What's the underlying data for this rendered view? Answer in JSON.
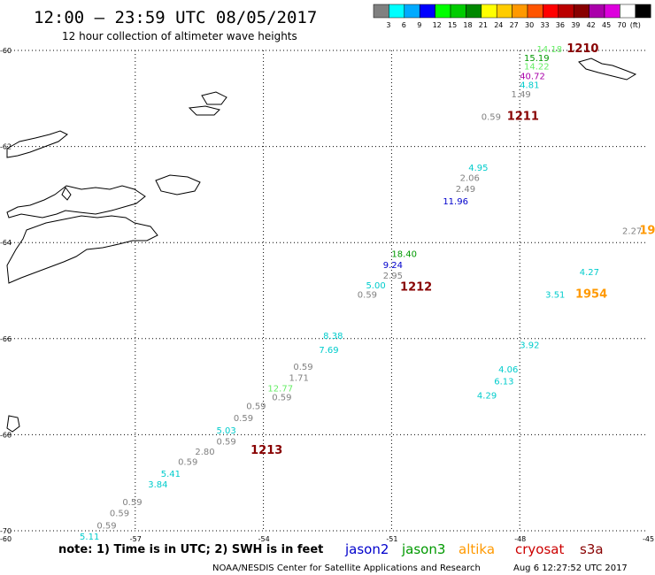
{
  "header": {
    "title": "12:00 – 23:59 UTC 08/05/2017",
    "subtitle": "12 hour collection of altimeter wave heights"
  },
  "colorbar": {
    "colors": [
      "#808080",
      "#00ffff",
      "#00aaff",
      "#0000ff",
      "#00ff00",
      "#00cc00",
      "#008800",
      "#ffff00",
      "#ffcc00",
      "#ff9900",
      "#ff5500",
      "#ff0000",
      "#bb0000",
      "#880000",
      "#aa00aa",
      "#dd00dd",
      "#ffffff",
      "#000000"
    ],
    "labels": [
      "3",
      "6",
      "9",
      "12",
      "15",
      "18",
      "21",
      "24",
      "27",
      "30",
      "33",
      "36",
      "39",
      "42",
      "45",
      "70"
    ],
    "unit": "(ft)"
  },
  "footer": {
    "note": "note: 1) Time is in UTC; 2) SWH is in feet",
    "credit": "NOAA/NESDIS Center for Satellite Applications and Research",
    "timestamp": "Aug  6 12:27:52 UTC 2017",
    "satellites": [
      {
        "name": "jason2",
        "color": "#0000cc"
      },
      {
        "name": "jason3",
        "color": "#009900"
      },
      {
        "name": "altika",
        "color": "#ff9900"
      },
      {
        "name": "cryosat",
        "color": "#cc0000"
      },
      {
        "name": "s3a",
        "color": "#880000"
      }
    ]
  },
  "chart_data": {
    "type": "scatter",
    "title": "12:00 – 23:59 UTC 08/05/2017",
    "subtitle": "12 hour collection of altimeter wave heights",
    "xlabel": "",
    "ylabel": "",
    "xlim": [
      -60,
      -45
    ],
    "ylim": [
      -70,
      -60
    ],
    "grid": true,
    "x_ticks": [
      "-57",
      "-54",
      "-51",
      "-48",
      "-45"
    ],
    "y_ticks": [
      "-60",
      "-62",
      "-64",
      "-66",
      "-68",
      "-70"
    ],
    "legend_placement": "bottom",
    "points": [
      {
        "lon": -47.6,
        "lat": -60.04,
        "text": "14.18",
        "color": "#66ee66"
      },
      {
        "lon": -47.9,
        "lat": -60.22,
        "text": "15.19",
        "color": "#009900"
      },
      {
        "lon": -47.9,
        "lat": -60.4,
        "text": "14.22",
        "color": "#66ee66"
      },
      {
        "lon": -48.0,
        "lat": -60.6,
        "text": "40.72",
        "color": "#aa00aa"
      },
      {
        "lon": -48.0,
        "lat": -60.78,
        "text": "4.81",
        "color": "#00cccc"
      },
      {
        "lon": -48.2,
        "lat": -60.98,
        "text": "1.49",
        "color": "#808080"
      },
      {
        "lon": -48.9,
        "lat": -61.45,
        "text": "0.59",
        "color": "#808080"
      },
      {
        "lon": -49.2,
        "lat": -62.5,
        "text": "4.95",
        "color": "#00cccc"
      },
      {
        "lon": -49.4,
        "lat": -62.72,
        "text": "2.06",
        "color": "#808080"
      },
      {
        "lon": -49.5,
        "lat": -62.95,
        "text": "2.49",
        "color": "#808080"
      },
      {
        "lon": -49.8,
        "lat": -63.2,
        "text": "11.96",
        "color": "#0000cc"
      },
      {
        "lon": -45.6,
        "lat": -63.82,
        "text": "2.27",
        "color": "#808080"
      },
      {
        "lon": -51.0,
        "lat": -64.3,
        "text": "18.40",
        "color": "#009900"
      },
      {
        "lon": -51.2,
        "lat": -64.53,
        "text": "9.24",
        "color": "#0000cc"
      },
      {
        "lon": -51.2,
        "lat": -64.75,
        "text": "2.95",
        "color": "#808080"
      },
      {
        "lon": -46.6,
        "lat": -64.68,
        "text": "4.27",
        "color": "#00cccc"
      },
      {
        "lon": -51.6,
        "lat": -64.95,
        "text": "5.00",
        "color": "#00cccc"
      },
      {
        "lon": -47.4,
        "lat": -65.15,
        "text": "3.51",
        "color": "#00cccc"
      },
      {
        "lon": -51.8,
        "lat": -65.15,
        "text": "0.59",
        "color": "#808080"
      },
      {
        "lon": -52.6,
        "lat": -66.0,
        "text": "8.38",
        "color": "#00cccc"
      },
      {
        "lon": -52.7,
        "lat": -66.3,
        "text": "7.69",
        "color": "#00cccc"
      },
      {
        "lon": -48.0,
        "lat": -66.2,
        "text": "3.92",
        "color": "#00cccc"
      },
      {
        "lon": -53.3,
        "lat": -66.65,
        "text": "0.59",
        "color": "#808080"
      },
      {
        "lon": -48.5,
        "lat": -66.7,
        "text": "4.06",
        "color": "#00cccc"
      },
      {
        "lon": -53.4,
        "lat": -66.88,
        "text": "1.71",
        "color": "#808080"
      },
      {
        "lon": -48.6,
        "lat": -66.95,
        "text": "6.13",
        "color": "#00cccc"
      },
      {
        "lon": -53.9,
        "lat": -67.1,
        "text": "12.77",
        "color": "#66ee66"
      },
      {
        "lon": -53.8,
        "lat": -67.28,
        "text": "0.59",
        "color": "#808080"
      },
      {
        "lon": -49.0,
        "lat": -67.25,
        "text": "4.29",
        "color": "#00cccc"
      },
      {
        "lon": -54.4,
        "lat": -67.47,
        "text": "0.59",
        "color": "#808080"
      },
      {
        "lon": -54.7,
        "lat": -67.72,
        "text": "0.59",
        "color": "#808080"
      },
      {
        "lon": -55.1,
        "lat": -67.97,
        "text": "5.03",
        "color": "#00cccc"
      },
      {
        "lon": -55.1,
        "lat": -68.2,
        "text": "0.59",
        "color": "#808080"
      },
      {
        "lon": -55.6,
        "lat": -68.42,
        "text": "2.80",
        "color": "#808080"
      },
      {
        "lon": -56.0,
        "lat": -68.63,
        "text": "0.59",
        "color": "#808080"
      },
      {
        "lon": -56.4,
        "lat": -68.88,
        "text": "5.41",
        "color": "#00cccc"
      },
      {
        "lon": -56.7,
        "lat": -69.1,
        "text": "3.84",
        "color": "#00cccc"
      },
      {
        "lon": -57.3,
        "lat": -69.47,
        "text": "0.59",
        "color": "#808080"
      },
      {
        "lon": -57.6,
        "lat": -69.7,
        "text": "0.59",
        "color": "#808080"
      },
      {
        "lon": -57.9,
        "lat": -69.95,
        "text": "0.59",
        "color": "#808080"
      },
      {
        "lon": -58.3,
        "lat": -70.18,
        "text": "5.11",
        "color": "#00cccc"
      }
    ],
    "passes": [
      {
        "lon": -46.9,
        "lat": -60.04,
        "label": "1210",
        "color": "#880000"
      },
      {
        "lon": -48.3,
        "lat": -61.45,
        "label": "1211",
        "color": "#880000"
      },
      {
        "lon": -50.8,
        "lat": -65.0,
        "label": "1212",
        "color": "#880000"
      },
      {
        "lon": -54.3,
        "lat": -68.4,
        "label": "1213",
        "color": "#880000"
      },
      {
        "lon": -46.7,
        "lat": -65.15,
        "label": "1954",
        "color": "#ff9900"
      },
      {
        "lon": -45.2,
        "lat": -63.82,
        "label": "19",
        "color": "#ff9900"
      }
    ]
  }
}
